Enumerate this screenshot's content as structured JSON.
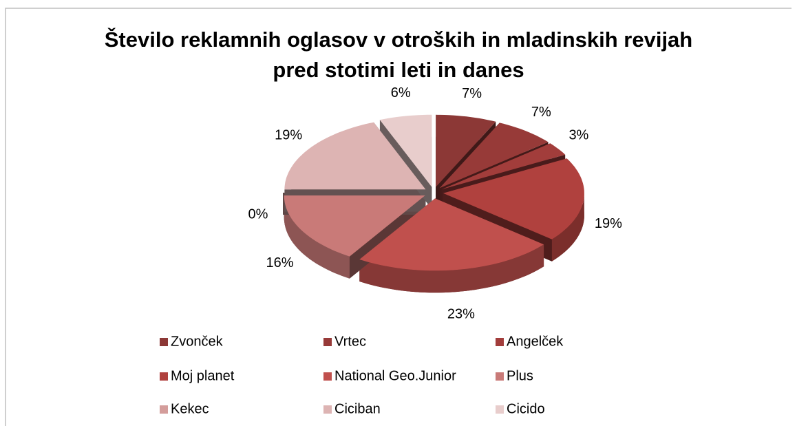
{
  "chart_data": {
    "type": "pie3d",
    "title": "Število reklamnih oglasov v otroških in mladinskih revijah pred stotimi leti in danes",
    "categories": [
      "Zvonček",
      "Vrtec",
      "Angelček",
      "Moj planet",
      "National Geo.Junior",
      "Plus",
      "Kekec",
      "Ciciban",
      "Cicido"
    ],
    "values": [
      7,
      7,
      3,
      19,
      23,
      16,
      0,
      19,
      6
    ],
    "value_labels": [
      "7%",
      "7%",
      "3%",
      "19%",
      "23%",
      "16%",
      "0%",
      "19%",
      "6%"
    ],
    "colors": [
      "#8c3836",
      "#973a38",
      "#a23d3b",
      "#b0413e",
      "#c0504d",
      "#c97a78",
      "#d49d9b",
      "#ddb4b3",
      "#e8cdcc"
    ],
    "legend": "bottom"
  }
}
